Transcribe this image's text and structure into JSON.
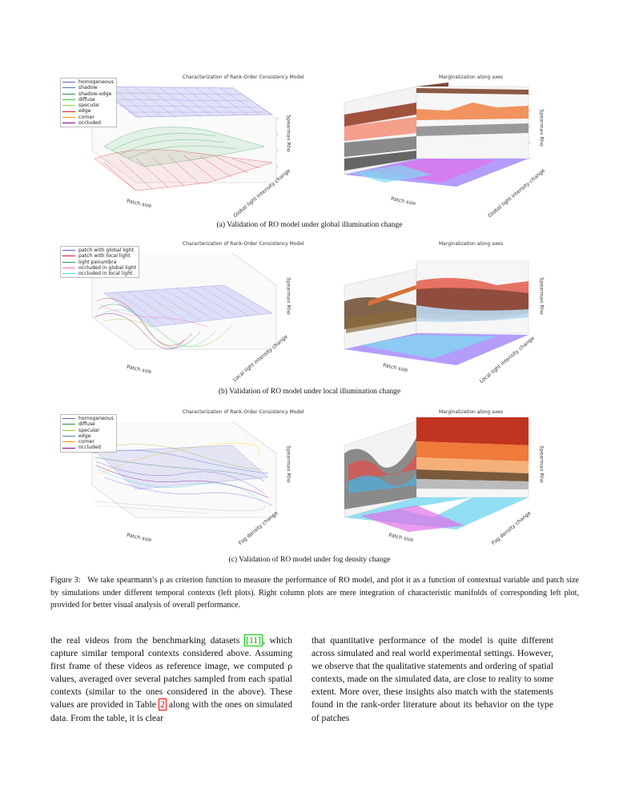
{
  "figures": [
    {
      "left_title": "Characterization of Rank-Order Consistency Model",
      "right_title": "Marginalization along axes",
      "legend": [
        "homogeneous",
        "shadow",
        "shadow-edge",
        "diffuse",
        "specular",
        "edge",
        "corner",
        "occluded"
      ],
      "xlabel": "Patch size",
      "ylabel": "Global light intensity change",
      "zlabel": "Spearman Rho",
      "caption": "(a) Validation of RO model under global illumination change"
    },
    {
      "left_title": "Characterization of Rank-Order Consistency Model",
      "right_title": "Marginalization along axes",
      "legend": [
        "patch with global light",
        "patch with local light",
        "light penumbra",
        "occluded in global light",
        "occluded in local light"
      ],
      "xlabel": "Patch size",
      "ylabel": "Local light intensity change",
      "zlabel": "Spearman Rho",
      "caption": "(b) Validation of RO model under local illumination change"
    },
    {
      "left_title": "Characterization of Rank-Order Consistency Model",
      "right_title": "Marginalization along axes",
      "legend": [
        "homogeneous",
        "diffuse",
        "specular",
        "edge",
        "corner",
        "occluded"
      ],
      "xlabel": "Patch size",
      "ylabel": "Fog density change",
      "zlabel": "Spearman Rho",
      "caption": "(c) Validation of RO model under fog density change"
    }
  ],
  "figure_caption": {
    "label": "Figure 3:",
    "text": "We take spearmann’s ρ as criterion function to measure the performance of RO model, and plot it as a function of contextual variable and patch size by simulations under different temporal contexts (left plots). Right column plots are mere integration of characteristic manifolds of corresponding left plot, provided for better visual analysis of overall performance."
  },
  "body_left": {
    "t1": "the real videos from the benchmarking datasets ",
    "ref": "[11]",
    "t2": ", which capture similar temporal contexts considered above. Assuming first frame of these videos as reference image, we computed ρ values, averaged over several patches sampled from each spatial contexts (similar to the ones considered in the above). These values are provided in Table ",
    "table_ref": "2",
    "t3": " along with the ones on simulated data. From the table, it is clear"
  },
  "body_right": "that quantitative performance of the model is quite different across simulated and real world experimental settings. However, we observe that the qualitative statements and ordering of spatial contexts, made on the simulated data, are close to reality to some extent. More over, these insights also match with the statements found in the rank-order literature about its behavior on the type of patches",
  "colors": {
    "legend_a": [
      "#6a5acd",
      "#4682b4",
      "#2e8b57",
      "#32cd32",
      "#9acd32",
      "#dc143c",
      "#ff8c00",
      "#8b008b"
    ],
    "legend_b": [
      "#6a5acd",
      "#dc143c",
      "#2e8b57",
      "#ff69b4",
      "#40e0d0"
    ],
    "legend_c": [
      "#6a5acd",
      "#2e8b57",
      "#9acd32",
      "#4682b4",
      "#ff8c00",
      "#8b008b"
    ]
  }
}
